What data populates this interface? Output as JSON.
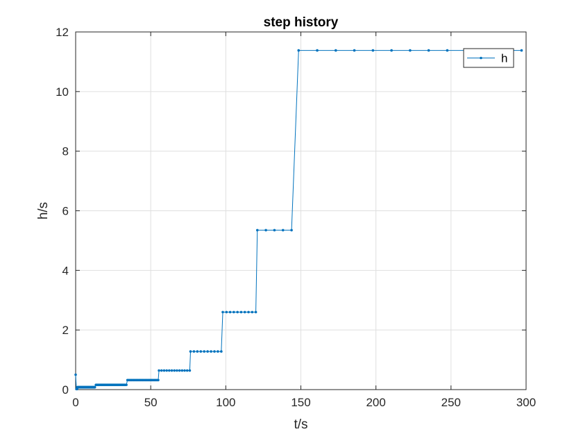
{
  "chart_data": {
    "type": "line",
    "title": "step history",
    "xlabel": "t/s",
    "ylabel": "h/s",
    "xlim": [
      0,
      300
    ],
    "ylim": [
      0,
      12
    ],
    "xticks": [
      0,
      50,
      100,
      150,
      200,
      250,
      300
    ],
    "yticks": [
      0,
      2,
      4,
      6,
      8,
      10,
      12
    ],
    "grid": true,
    "legend_position": "top-right",
    "series_color": "#0072BD",
    "series": [
      {
        "name": "h",
        "marker": "point",
        "segments": [
          {
            "t_start": 0,
            "t_end": 0,
            "h": 0.5,
            "count": 1
          },
          {
            "t_start": 0.5,
            "t_end": 1,
            "h": 0.02,
            "count": 2
          },
          {
            "t_start": 1.2,
            "t_end": 12.8,
            "h": 0.08,
            "count": 72
          },
          {
            "t_start": 13.5,
            "t_end": 33.8,
            "h": 0.16,
            "count": 50
          },
          {
            "t_start": 34.5,
            "t_end": 55.0,
            "h": 0.32,
            "count": 25
          },
          {
            "t_start": 55.5,
            "t_end": 76.0,
            "h": 0.64,
            "count": 13
          },
          {
            "t_start": 76.5,
            "t_end": 97.0,
            "h": 1.28,
            "count": 10
          },
          {
            "t_start": 98.0,
            "t_end": 120.0,
            "h": 2.6,
            "count": 10
          },
          {
            "t_start": 121.0,
            "t_end": 143.8,
            "h": 5.35,
            "count": 5
          },
          {
            "t_start": 148.5,
            "t_end": 297.0,
            "h": 11.38,
            "count": 13
          }
        ]
      }
    ]
  }
}
